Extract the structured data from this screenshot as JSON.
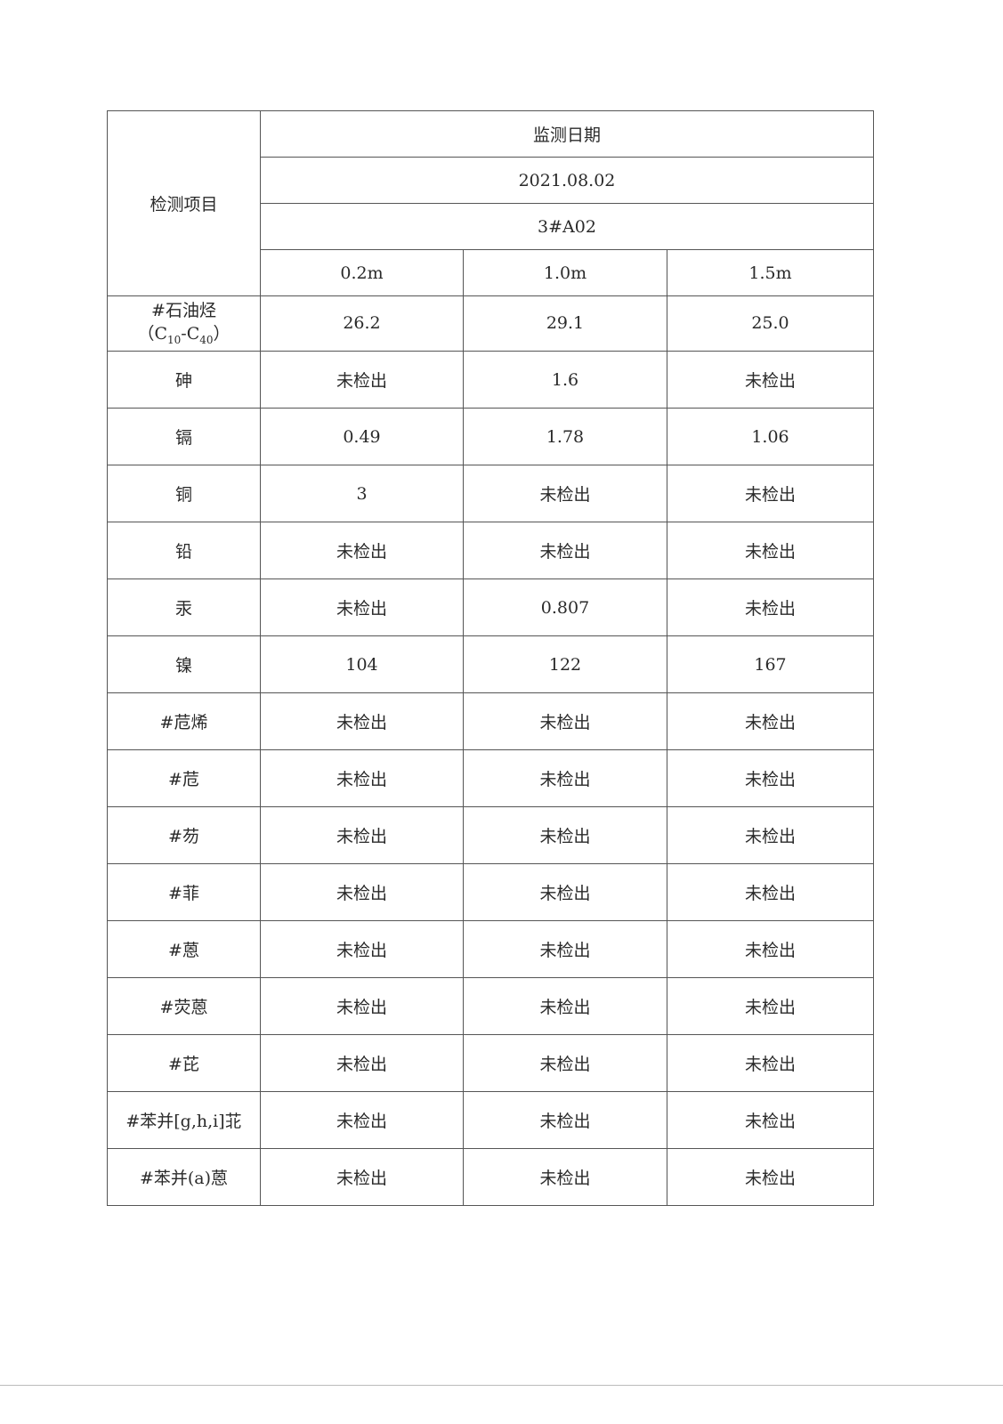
{
  "table": {
    "item_header": "检测项目",
    "date_header": "监测日期",
    "date": "2021.08.02",
    "point": "3#A02",
    "depths": [
      "0.2m",
      "1.0m",
      "1.5m"
    ],
    "first_item": {
      "name": "#石油烃",
      "formula_open": "（C",
      "sub1": "10",
      "dash": "-C",
      "sub2": "40",
      "formula_close": "）"
    },
    "first_values": [
      "26.2",
      "29.1",
      "25.0"
    ],
    "rows": [
      {
        "item": "砷",
        "values": [
          "未检出",
          "1.6",
          "未检出"
        ]
      },
      {
        "item": "镉",
        "values": [
          "0.49",
          "1.78",
          "1.06"
        ]
      },
      {
        "item": "铜",
        "values": [
          "3",
          "未检出",
          "未检出"
        ]
      },
      {
        "item": "铅",
        "values": [
          "未检出",
          "未检出",
          "未检出"
        ]
      },
      {
        "item": "汞",
        "values": [
          "未检出",
          "0.807",
          "未检出"
        ]
      },
      {
        "item": "镍",
        "values": [
          "104",
          "122",
          "167"
        ]
      },
      {
        "item": "#苊烯",
        "values": [
          "未检出",
          "未检出",
          "未检出"
        ]
      },
      {
        "item": "#苊",
        "values": [
          "未检出",
          "未检出",
          "未检出"
        ]
      },
      {
        "item": "#芴",
        "values": [
          "未检出",
          "未检出",
          "未检出"
        ]
      },
      {
        "item": "#菲",
        "values": [
          "未检出",
          "未检出",
          "未检出"
        ]
      },
      {
        "item": "#蒽",
        "values": [
          "未检出",
          "未检出",
          "未检出"
        ]
      },
      {
        "item": "#荧蒽",
        "values": [
          "未检出",
          "未检出",
          "未检出"
        ]
      },
      {
        "item": "#芘",
        "values": [
          "未检出",
          "未检出",
          "未检出"
        ]
      },
      {
        "item": "#苯并[g,h,i]苝",
        "values": [
          "未检出",
          "未检出",
          "未检出"
        ]
      },
      {
        "item": "#苯并(a)蒽",
        "values": [
          "未检出",
          "未检出",
          "未检出"
        ]
      }
    ]
  }
}
